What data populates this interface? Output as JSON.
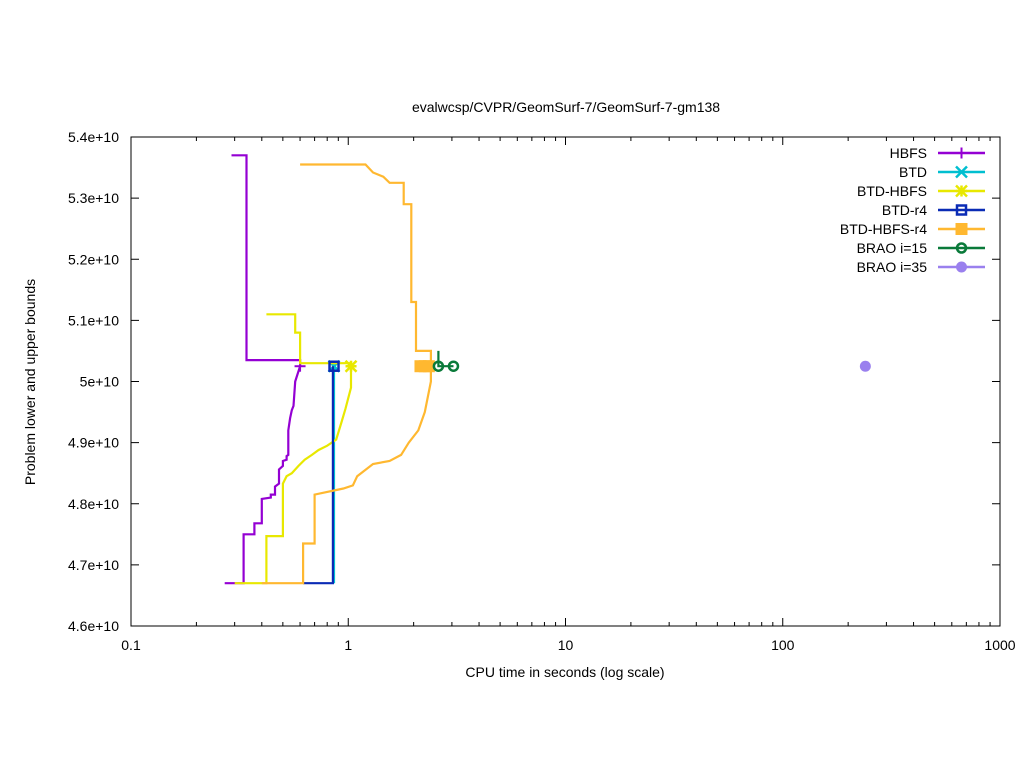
{
  "chart_data": {
    "type": "line",
    "title": "evalwcsp/CVPR/GeomSurf-7/GeomSurf-7-gm138",
    "xlabel": "CPU time in seconds (log scale)",
    "ylabel": "Problem lower and upper bounds",
    "x_scale": "log",
    "xlim": [
      0.1,
      1000
    ],
    "ylim": [
      46000000000,
      54000000000
    ],
    "x_ticks": [
      0.1,
      1,
      10,
      100,
      1000
    ],
    "x_tick_labels": [
      "0.1",
      "1",
      "10",
      "100",
      "1000"
    ],
    "y_ticks": [
      46000000000,
      47000000000,
      48000000000,
      49000000000,
      50000000000,
      51000000000,
      52000000000,
      53000000000,
      54000000000
    ],
    "y_tick_labels": [
      "4.6e+10",
      "4.7e+10",
      "4.8e+10",
      "4.9e+10",
      "5e+10",
      "5.1e+10",
      "5.2e+10",
      "5.3e+10",
      "5.4e+10"
    ],
    "grid": false,
    "legend_position": "top-right",
    "series": [
      {
        "name": "HBFS",
        "color": "#9400d3",
        "marker": "plus",
        "lines": [
          [
            [
              0.27,
              46700000000
            ],
            [
              0.33,
              46700000000
            ],
            [
              0.33,
              47500000000
            ],
            [
              0.37,
              47500000000
            ],
            [
              0.37,
              47680000000
            ],
            [
              0.4,
              47680000000
            ],
            [
              0.4,
              48080000000
            ],
            [
              0.44,
              48100000000
            ],
            [
              0.44,
              48150000000
            ],
            [
              0.46,
              48150000000
            ],
            [
              0.46,
              48280000000
            ],
            [
              0.48,
              48330000000
            ],
            [
              0.48,
              48560000000
            ],
            [
              0.5,
              48620000000
            ],
            [
              0.5,
              48700000000
            ],
            [
              0.52,
              48720000000
            ],
            [
              0.52,
              48780000000
            ],
            [
              0.53,
              48800000000
            ],
            [
              0.53,
              49200000000
            ],
            [
              0.54,
              49400000000
            ],
            [
              0.55,
              49530000000
            ],
            [
              0.56,
              49600000000
            ],
            [
              0.57,
              50000000000
            ],
            [
              0.6,
              50250000000
            ]
          ],
          [
            [
              0.29,
              53700000000
            ],
            [
              0.34,
              53700000000
            ],
            [
              0.34,
              50350000000
            ],
            [
              0.6,
              50350000000
            ],
            [
              0.6,
              50250000000
            ]
          ]
        ],
        "markers": [
          [
            0.6,
            50250000000
          ]
        ]
      },
      {
        "name": "BTD",
        "color": "#00bfd0",
        "marker": "x",
        "lines": [
          [
            [
              0.86,
              46700000000
            ],
            [
              0.86,
              50250000000
            ]
          ]
        ],
        "markers": [
          [
            0.86,
            50250000000
          ]
        ]
      },
      {
        "name": "BTD-HBFS",
        "color": "#e8e800",
        "marker": "star",
        "lines": [
          [
            [
              0.3,
              46700000000
            ],
            [
              0.42,
              46700000000
            ],
            [
              0.42,
              47470000000
            ],
            [
              0.5,
              47470000000
            ],
            [
              0.5,
              48330000000
            ],
            [
              0.52,
              48450000000
            ],
            [
              0.55,
              48500000000
            ],
            [
              0.59,
              48620000000
            ],
            [
              0.63,
              48720000000
            ],
            [
              0.68,
              48800000000
            ],
            [
              0.73,
              48880000000
            ],
            [
              0.8,
              48950000000
            ],
            [
              0.88,
              49050000000
            ],
            [
              0.93,
              49330000000
            ],
            [
              0.97,
              49550000000
            ],
            [
              1.03,
              49900000000
            ],
            [
              1.03,
              50250000000
            ]
          ],
          [
            [
              0.42,
              51100000000
            ],
            [
              0.57,
              51100000000
            ],
            [
              0.57,
              50800000000
            ],
            [
              0.6,
              50800000000
            ],
            [
              0.6,
              50300000000
            ],
            [
              1.03,
              50300000000
            ],
            [
              1.03,
              50250000000
            ]
          ]
        ],
        "markers": [
          [
            1.03,
            50250000000
          ]
        ]
      },
      {
        "name": "BTD-r4",
        "color": "#0a2bb5",
        "marker": "square-open",
        "lines": [
          [
            [
              0.62,
              46700000000
            ],
            [
              0.85,
              46700000000
            ],
            [
              0.85,
              50250000000
            ]
          ]
        ],
        "markers": [
          [
            0.86,
            50250000000
          ]
        ]
      },
      {
        "name": "BTD-HBFS-r4",
        "color": "#ffb830",
        "marker": "square-filled",
        "lines": [
          [
            [
              0.4,
              46700000000
            ],
            [
              0.62,
              46700000000
            ],
            [
              0.62,
              47350000000
            ],
            [
              0.7,
              47350000000
            ],
            [
              0.7,
              48150000000
            ],
            [
              0.95,
              48250000000
            ],
            [
              1.05,
              48300000000
            ],
            [
              1.1,
              48450000000
            ],
            [
              1.3,
              48650000000
            ],
            [
              1.55,
              48700000000
            ],
            [
              1.75,
              48800000000
            ],
            [
              1.9,
              49000000000
            ],
            [
              2.1,
              49200000000
            ],
            [
              2.25,
              49500000000
            ],
            [
              2.4,
              50000000000
            ],
            [
              2.4,
              50250000000
            ]
          ],
          [
            [
              0.6,
              53550000000
            ],
            [
              1.2,
              53550000000
            ],
            [
              1.3,
              53420000000
            ],
            [
              1.45,
              53350000000
            ],
            [
              1.55,
              53250000000
            ],
            [
              1.8,
              53250000000
            ],
            [
              1.8,
              52900000000
            ],
            [
              1.95,
              52900000000
            ],
            [
              1.95,
              51300000000
            ],
            [
              2.05,
              51300000000
            ],
            [
              2.05,
              50500000000
            ],
            [
              2.4,
              50500000000
            ],
            [
              2.4,
              50250000000
            ]
          ]
        ],
        "markers": [
          [
            2.15,
            50250000000
          ],
          [
            2.25,
            50250000000
          ],
          [
            2.35,
            50250000000
          ]
        ]
      },
      {
        "name": "BRAO i=15",
        "color": "#0a7a3a",
        "marker": "circle-open",
        "lines": [
          [
            [
              2.6,
              50500000000
            ],
            [
              2.6,
              50250000000
            ],
            [
              3.05,
              50250000000
            ]
          ]
        ],
        "markers": [
          [
            2.6,
            50250000000
          ],
          [
            3.05,
            50250000000
          ]
        ]
      },
      {
        "name": "BRAO i=35",
        "color": "#9a80ee",
        "marker": "circle-filled",
        "lines": [],
        "markers": [
          [
            240,
            50250000000
          ]
        ]
      }
    ]
  }
}
